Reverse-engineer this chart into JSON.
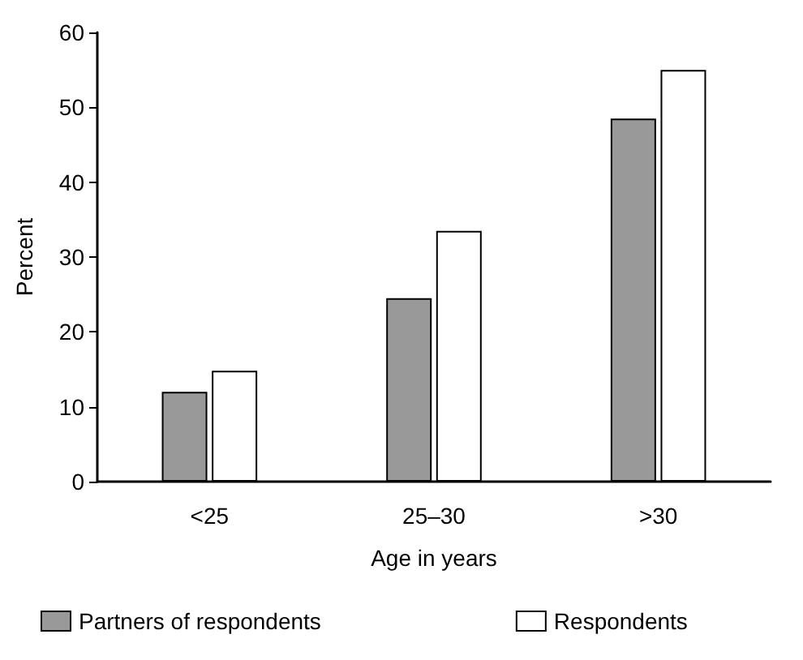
{
  "chart_data": {
    "type": "bar",
    "xlabel": "Age in years",
    "ylabel": "Percent",
    "categories": [
      "<25",
      "25–30",
      ">30"
    ],
    "series": [
      {
        "name": "Partners of respondents",
        "color": "#999999",
        "values": [
          12,
          24.5,
          48.5
        ]
      },
      {
        "name": "Respondents",
        "color": "#ffffff",
        "values": [
          14.8,
          33.5,
          55
        ]
      }
    ],
    "ylim": [
      0,
      60
    ],
    "yticks": [
      0,
      10,
      20,
      30,
      40,
      50,
      60
    ],
    "grid": false,
    "legend": "bottom"
  }
}
